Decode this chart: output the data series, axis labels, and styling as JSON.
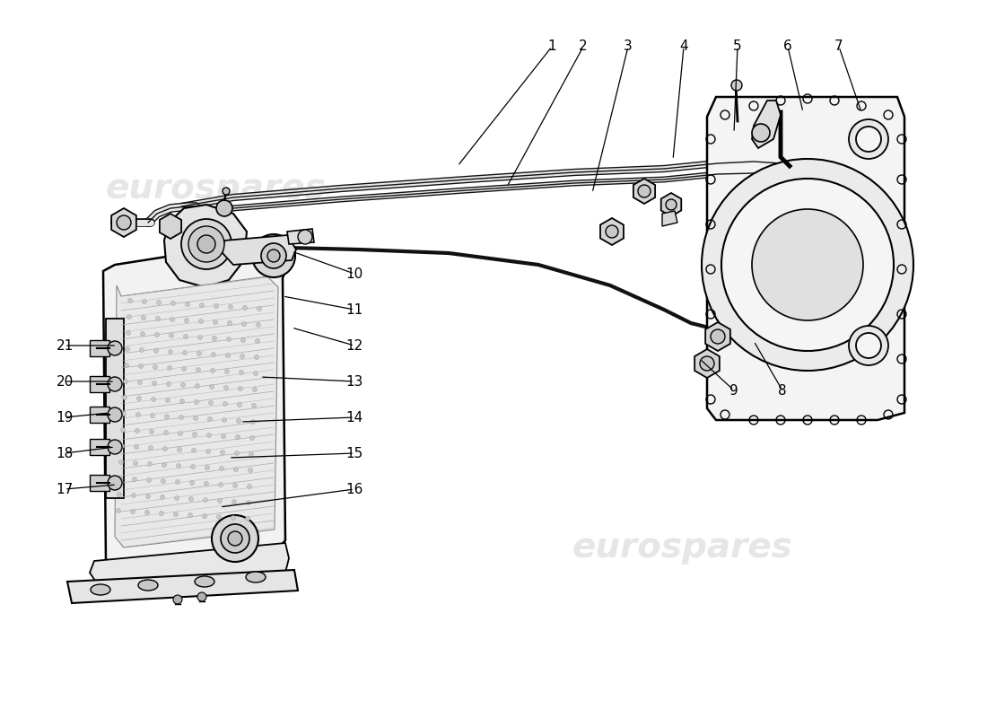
{
  "background_color": "#ffffff",
  "watermark_text": "eurospares",
  "watermark_color": "#e6e6e6",
  "wm1": [
    240,
    210
  ],
  "wm2": [
    760,
    610
  ],
  "line_color": "#000000",
  "text_color": "#000000",
  "callout_fontsize": 11,
  "callouts": [
    [
      1,
      615,
      52,
      510,
      185
    ],
    [
      2,
      650,
      52,
      565,
      208
    ],
    [
      3,
      700,
      52,
      660,
      215
    ],
    [
      4,
      762,
      52,
      750,
      178
    ],
    [
      5,
      822,
      52,
      818,
      148
    ],
    [
      6,
      878,
      52,
      895,
      125
    ],
    [
      7,
      935,
      52,
      960,
      125
    ],
    [
      8,
      872,
      435,
      840,
      380
    ],
    [
      9,
      818,
      435,
      780,
      400
    ],
    [
      10,
      395,
      305,
      325,
      280
    ],
    [
      11,
      395,
      345,
      315,
      330
    ],
    [
      12,
      395,
      385,
      325,
      365
    ],
    [
      13,
      395,
      425,
      290,
      420
    ],
    [
      14,
      395,
      465,
      268,
      470
    ],
    [
      15,
      395,
      505,
      255,
      510
    ],
    [
      16,
      395,
      545,
      245,
      565
    ],
    [
      17,
      72,
      545,
      130,
      540
    ],
    [
      18,
      72,
      505,
      128,
      498
    ],
    [
      19,
      72,
      465,
      122,
      460
    ],
    [
      20,
      72,
      425,
      128,
      425
    ],
    [
      21,
      72,
      385,
      130,
      385
    ]
  ]
}
